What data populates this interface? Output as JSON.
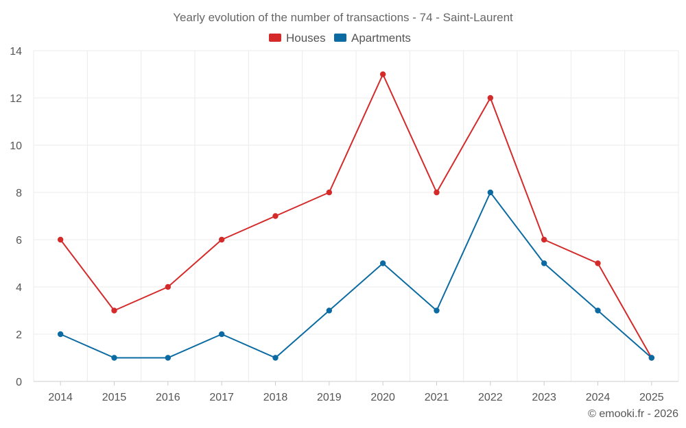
{
  "chart_data": {
    "type": "line",
    "title": "Yearly evolution of the number of transactions - 74 - Saint-Laurent",
    "categories": [
      "2014",
      "2015",
      "2016",
      "2017",
      "2018",
      "2019",
      "2020",
      "2021",
      "2022",
      "2023",
      "2024",
      "2025"
    ],
    "series": [
      {
        "name": "Houses",
        "color": "#d42a2a",
        "values": [
          6,
          3,
          4,
          6,
          7,
          8,
          13,
          8,
          12,
          6,
          5,
          1
        ]
      },
      {
        "name": "Apartments",
        "color": "#0a6aa1",
        "values": [
          2,
          1,
          1,
          2,
          1,
          3,
          5,
          3,
          8,
          5,
          3,
          1
        ]
      }
    ],
    "ylim": [
      0,
      14
    ],
    "yticks": [
      "0",
      "2",
      "4",
      "6",
      "8",
      "10",
      "12",
      "14"
    ],
    "grid": true,
    "legend_position": "top-center",
    "xlabel": "",
    "ylabel": ""
  },
  "credit": "© emooki.fr - 2026"
}
